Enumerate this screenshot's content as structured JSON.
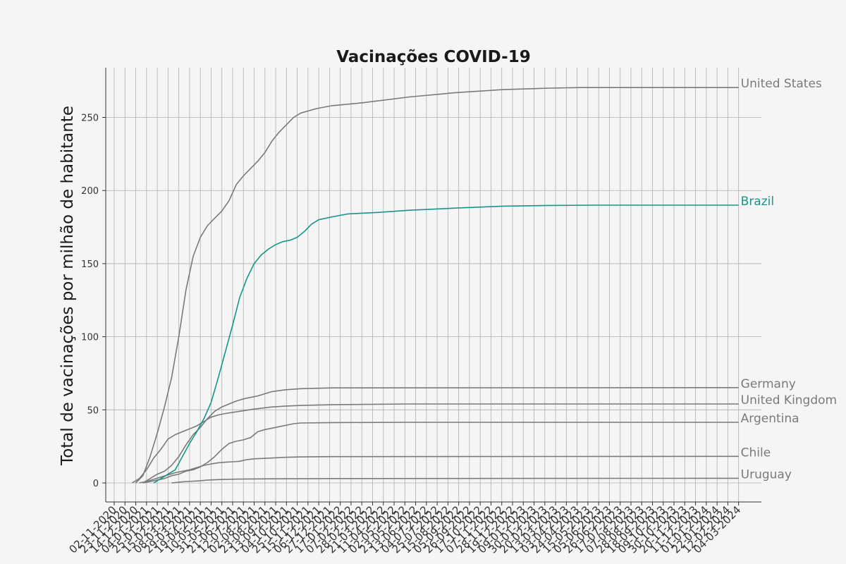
{
  "colors": {
    "background": "#f5f5f5",
    "grid": "#b0b0b0",
    "axis": "#333333",
    "highlight": "#16968a",
    "muted": "#7a7a7a"
  },
  "chart_data": {
    "type": "line",
    "title": "Vacinações COVID-19",
    "xlabel": "",
    "ylabel": "Total de vacinações por milhão de habitante",
    "x_tick_labels": [
      "02-11-2020",
      "23-11-2020",
      "14-12-2020",
      "04-01-2021",
      "25-01-2021",
      "15-02-2021",
      "08-03-2021",
      "29-03-2021",
      "19-04-2021",
      "10-05-2021",
      "31-05-2021",
      "21-06-2021",
      "12-07-2021",
      "02-08-2021",
      "23-08-2021",
      "13-09-2021",
      "04-10-2021",
      "25-10-2021",
      "15-11-2021",
      "06-12-2021",
      "27-12-2021",
      "17-01-2022",
      "07-02-2022",
      "28-02-2022",
      "21-03-2022",
      "11-04-2022",
      "02-05-2022",
      "23-05-2022",
      "13-06-2022",
      "04-07-2022",
      "25-07-2022",
      "15-08-2022",
      "05-09-2022",
      "26-09-2022",
      "17-10-2022",
      "07-11-2022",
      "28-11-2022",
      "19-12-2022",
      "09-01-2023",
      "30-01-2023",
      "20-02-2023",
      "13-03-2023",
      "03-04-2023",
      "24-04-2023",
      "15-05-2023",
      "05-06-2023",
      "26-06-2023",
      "17-07-2023",
      "07-08-2023",
      "28-08-2023",
      "18-09-2023",
      "09-10-2023",
      "30-10-2023",
      "20-11-2023",
      "11-12-2023",
      "01-01-2024",
      "22-01-2024",
      "12-02-2024",
      "04-03-2024"
    ],
    "ylim": [
      -13,
      284
    ],
    "y_ticks": [
      0,
      50,
      100,
      150,
      200,
      250
    ],
    "grid": true,
    "legend": "labels at line ends (right)",
    "series": [
      {
        "name": "United States",
        "color": "#7a7a7a",
        "points": [
          [
            "2020-12-14",
            0
          ],
          [
            "2020-12-28",
            5
          ],
          [
            "2021-01-11",
            18
          ],
          [
            "2021-01-25",
            34
          ],
          [
            "2021-02-08",
            52
          ],
          [
            "2021-02-22",
            72
          ],
          [
            "2021-03-08",
            100
          ],
          [
            "2021-03-22",
            132
          ],
          [
            "2021-04-05",
            155
          ],
          [
            "2021-04-19",
            168
          ],
          [
            "2021-05-03",
            176
          ],
          [
            "2021-05-17",
            181
          ],
          [
            "2021-05-31",
            186
          ],
          [
            "2021-06-14",
            193
          ],
          [
            "2021-06-28",
            204
          ],
          [
            "2021-07-12",
            210
          ],
          [
            "2021-07-26",
            215
          ],
          [
            "2021-08-09",
            220
          ],
          [
            "2021-08-23",
            226
          ],
          [
            "2021-09-06",
            234
          ],
          [
            "2021-09-20",
            240
          ],
          [
            "2021-10-04",
            245
          ],
          [
            "2021-10-18",
            250
          ],
          [
            "2021-11-01",
            253
          ],
          [
            "2021-12-01",
            256
          ],
          [
            "2022-01-01",
            258
          ],
          [
            "2022-03-01",
            260
          ],
          [
            "2022-06-01",
            264
          ],
          [
            "2022-09-01",
            267
          ],
          [
            "2022-12-01",
            269
          ],
          [
            "2023-03-01",
            270
          ],
          [
            "2023-05-01",
            270.4
          ],
          [
            "2024-03-04",
            270.4
          ]
        ]
      },
      {
        "name": "Brazil",
        "color": "#16968a",
        "points": [
          [
            "2021-01-18",
            0
          ],
          [
            "2021-02-01",
            3
          ],
          [
            "2021-02-15",
            6
          ],
          [
            "2021-03-01",
            9
          ],
          [
            "2021-03-15",
            18
          ],
          [
            "2021-03-29",
            27
          ],
          [
            "2021-04-12",
            35
          ],
          [
            "2021-04-26",
            44
          ],
          [
            "2021-05-10",
            55
          ],
          [
            "2021-05-24",
            72
          ],
          [
            "2021-06-07",
            90
          ],
          [
            "2021-06-21",
            108
          ],
          [
            "2021-07-05",
            127
          ],
          [
            "2021-07-19",
            140
          ],
          [
            "2021-08-02",
            150
          ],
          [
            "2021-08-16",
            156
          ],
          [
            "2021-08-30",
            160
          ],
          [
            "2021-09-13",
            163
          ],
          [
            "2021-09-27",
            165
          ],
          [
            "2021-10-11",
            166
          ],
          [
            "2021-10-25",
            168
          ],
          [
            "2021-11-08",
            172
          ],
          [
            "2021-11-22",
            177
          ],
          [
            "2021-12-06",
            180
          ],
          [
            "2022-01-01",
            182
          ],
          [
            "2022-02-01",
            184
          ],
          [
            "2022-04-01",
            185
          ],
          [
            "2022-06-01",
            186.5
          ],
          [
            "2022-09-01",
            188
          ],
          [
            "2022-12-01",
            189.3
          ],
          [
            "2023-03-01",
            189.8
          ],
          [
            "2023-06-01",
            190
          ],
          [
            "2024-03-04",
            190
          ]
        ]
      },
      {
        "name": "Germany",
        "color": "#7a7a7a",
        "points": [
          [
            "2020-12-28",
            0
          ],
          [
            "2021-01-11",
            3
          ],
          [
            "2021-01-25",
            6
          ],
          [
            "2021-02-08",
            8
          ],
          [
            "2021-02-22",
            12
          ],
          [
            "2021-03-08",
            18
          ],
          [
            "2021-03-22",
            26
          ],
          [
            "2021-04-05",
            33
          ],
          [
            "2021-04-19",
            38
          ],
          [
            "2021-05-03",
            44
          ],
          [
            "2021-05-17",
            49
          ],
          [
            "2021-05-31",
            52
          ],
          [
            "2021-06-14",
            54
          ],
          [
            "2021-06-28",
            56
          ],
          [
            "2021-07-12",
            57.5
          ],
          [
            "2021-07-26",
            58.5
          ],
          [
            "2021-08-09",
            59.5
          ],
          [
            "2021-08-23",
            61
          ],
          [
            "2021-09-06",
            62.5
          ],
          [
            "2021-10-01",
            63.7
          ],
          [
            "2021-11-01",
            64.5
          ],
          [
            "2022-01-01",
            65
          ],
          [
            "2024-03-04",
            65.2
          ]
        ]
      },
      {
        "name": "United Kingdom",
        "color": "#7a7a7a",
        "points": [
          [
            "2020-12-07",
            0
          ],
          [
            "2020-12-21",
            3
          ],
          [
            "2021-01-04",
            9
          ],
          [
            "2021-01-18",
            17
          ],
          [
            "2021-02-01",
            23
          ],
          [
            "2021-02-15",
            30
          ],
          [
            "2021-03-01",
            33
          ],
          [
            "2021-03-15",
            35
          ],
          [
            "2021-03-29",
            37
          ],
          [
            "2021-04-12",
            39
          ],
          [
            "2021-04-26",
            42
          ],
          [
            "2021-05-10",
            45
          ],
          [
            "2021-05-24",
            46.5
          ],
          [
            "2021-06-07",
            47.5
          ],
          [
            "2021-06-21",
            48.3
          ],
          [
            "2021-07-05",
            49
          ],
          [
            "2021-08-01",
            50.5
          ],
          [
            "2021-09-01",
            51.8
          ],
          [
            "2021-10-01",
            52.5
          ],
          [
            "2021-11-01",
            53
          ],
          [
            "2022-01-01",
            53.5
          ],
          [
            "2022-06-01",
            54
          ],
          [
            "2024-03-04",
            54
          ]
        ]
      },
      {
        "name": "Argentina",
        "color": "#7a7a7a",
        "points": [
          [
            "2020-12-28",
            0
          ],
          [
            "2021-01-11",
            1
          ],
          [
            "2021-01-25",
            2
          ],
          [
            "2021-02-08",
            3
          ],
          [
            "2021-02-22",
            5
          ],
          [
            "2021-03-08",
            6
          ],
          [
            "2021-03-22",
            8
          ],
          [
            "2021-04-05",
            9
          ],
          [
            "2021-04-19",
            11
          ],
          [
            "2021-05-03",
            14
          ],
          [
            "2021-05-17",
            18
          ],
          [
            "2021-05-31",
            23
          ],
          [
            "2021-06-14",
            27
          ],
          [
            "2021-06-28",
            28.5
          ],
          [
            "2021-07-12",
            29.5
          ],
          [
            "2021-07-26",
            31
          ],
          [
            "2021-08-09",
            35
          ],
          [
            "2021-08-23",
            36.5
          ],
          [
            "2021-09-06",
            37.5
          ],
          [
            "2021-09-20",
            38.5
          ],
          [
            "2021-10-04",
            39.5
          ],
          [
            "2021-10-18",
            40.5
          ],
          [
            "2021-11-01",
            41
          ],
          [
            "2022-01-01",
            41.3
          ],
          [
            "2022-06-01",
            41.5
          ],
          [
            "2024-03-04",
            41.5
          ]
        ]
      },
      {
        "name": "Chile",
        "color": "#7a7a7a",
        "points": [
          [
            "2020-12-21",
            0
          ],
          [
            "2021-01-04",
            1
          ],
          [
            "2021-01-18",
            2.5
          ],
          [
            "2021-02-01",
            4
          ],
          [
            "2021-02-15",
            5.5
          ],
          [
            "2021-03-01",
            7
          ],
          [
            "2021-03-15",
            8
          ],
          [
            "2021-03-29",
            9
          ],
          [
            "2021-04-12",
            10.5
          ],
          [
            "2021-04-26",
            12
          ],
          [
            "2021-05-10",
            13
          ],
          [
            "2021-05-24",
            13.8
          ],
          [
            "2021-06-07",
            14.2
          ],
          [
            "2021-06-21",
            14.5
          ],
          [
            "2021-07-05",
            14.8
          ],
          [
            "2021-07-19",
            16
          ],
          [
            "2021-08-02",
            16.5
          ],
          [
            "2021-09-01",
            17
          ],
          [
            "2021-10-01",
            17.5
          ],
          [
            "2021-11-01",
            17.8
          ],
          [
            "2022-01-01",
            18
          ],
          [
            "2024-03-04",
            18.2
          ]
        ]
      },
      {
        "name": "Uruguay",
        "color": "#7a7a7a",
        "points": [
          [
            "2021-02-22",
            0
          ],
          [
            "2021-03-08",
            0.5
          ],
          [
            "2021-03-22",
            1
          ],
          [
            "2021-04-05",
            1.2
          ],
          [
            "2021-04-19",
            1.5
          ],
          [
            "2021-05-03",
            2
          ],
          [
            "2021-06-01",
            2.4
          ],
          [
            "2021-07-01",
            2.6
          ],
          [
            "2021-09-01",
            2.8
          ],
          [
            "2022-01-01",
            3
          ],
          [
            "2024-03-04",
            3.2
          ]
        ]
      }
    ]
  }
}
